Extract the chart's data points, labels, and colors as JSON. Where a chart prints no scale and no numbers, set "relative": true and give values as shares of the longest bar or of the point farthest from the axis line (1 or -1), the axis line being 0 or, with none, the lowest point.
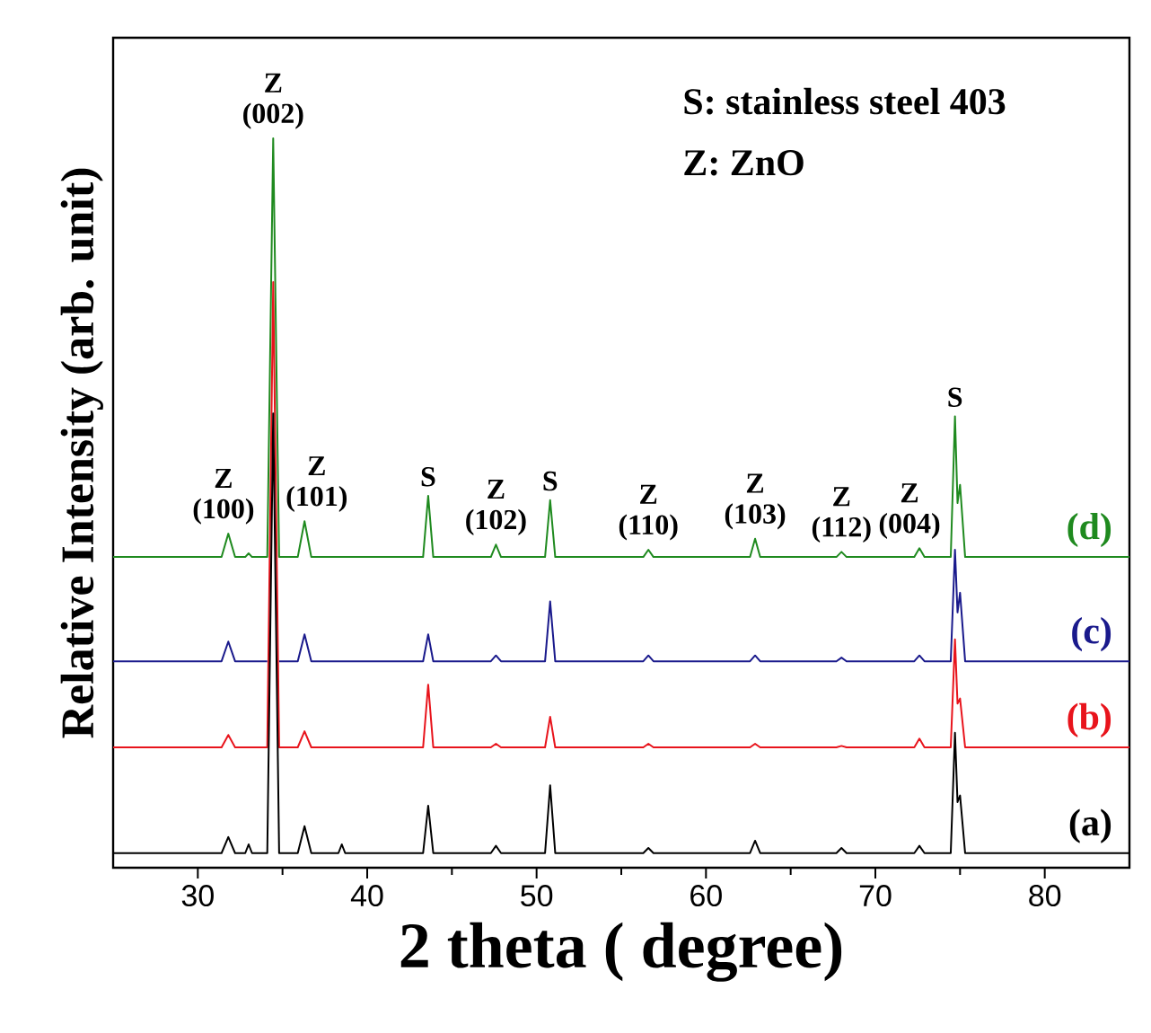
{
  "chart_data": {
    "type": "line",
    "relative": true,
    "xlabel": "2 theta ( degree)",
    "ylabel": "Relative Intensity (arb. unit)",
    "xlim": [
      25,
      85
    ],
    "xticks": [
      30,
      40,
      50,
      60,
      70,
      80
    ],
    "x": [
      25,
      31.4,
      31.8,
      32.2,
      32.8,
      33.0,
      33.2,
      34.1,
      34.45,
      34.8,
      35.9,
      36.3,
      36.7,
      38.3,
      38.5,
      38.7,
      43.3,
      43.6,
      43.9,
      47.3,
      47.6,
      47.9,
      50.5,
      50.8,
      51.1,
      56.3,
      56.6,
      56.9,
      62.6,
      62.9,
      63.2,
      67.7,
      68.0,
      68.3,
      72.3,
      72.6,
      72.9,
      74.45,
      74.7,
      74.85,
      75.0,
      75.3,
      85
    ],
    "series": [
      {
        "name": "(a)",
        "color": "#000000",
        "values": [
          0.02,
          0.02,
          0.042,
          0.02,
          0.02,
          0.032,
          0.02,
          0.02,
          0.623,
          0.02,
          0.02,
          0.057,
          0.02,
          0.02,
          0.032,
          0.02,
          0.02,
          0.085,
          0.02,
          0.02,
          0.03,
          0.02,
          0.02,
          0.113,
          0.02,
          0.02,
          0.027,
          0.02,
          0.02,
          0.037,
          0.02,
          0.02,
          0.027,
          0.02,
          0.02,
          0.03,
          0.02,
          0.02,
          0.185,
          0.09,
          0.099,
          0.02,
          0.02
        ]
      },
      {
        "name": "(b)",
        "color": "#e8141c",
        "values": [
          0.165,
          0.165,
          0.182,
          0.165,
          0.165,
          0.165,
          0.165,
          0.165,
          0.803,
          0.165,
          0.165,
          0.187,
          0.165,
          0.165,
          0.165,
          0.165,
          0.165,
          0.251,
          0.165,
          0.165,
          0.17,
          0.165,
          0.165,
          0.207,
          0.165,
          0.165,
          0.17,
          0.165,
          0.165,
          0.17,
          0.165,
          0.165,
          0.167,
          0.165,
          0.165,
          0.177,
          0.165,
          0.165,
          0.313,
          0.225,
          0.232,
          0.165,
          0.165
        ]
      },
      {
        "name": "(c)",
        "color": "#1a1a8c",
        "values": [
          0.283,
          0.283,
          0.31,
          0.283,
          0.283,
          0.283,
          0.283,
          0.283,
          null,
          0.283,
          0.283,
          0.32,
          0.283,
          0.283,
          0.283,
          0.283,
          0.283,
          0.32,
          0.283,
          0.283,
          0.291,
          0.283,
          0.283,
          0.365,
          0.283,
          0.283,
          0.291,
          0.283,
          0.283,
          0.291,
          0.283,
          0.283,
          0.288,
          0.283,
          0.283,
          0.291,
          0.283,
          0.283,
          0.436,
          0.35,
          0.377,
          0.283,
          0.283
        ]
      },
      {
        "name": "(d)",
        "color": "#1f8a1f",
        "values": [
          0.426,
          0.426,
          0.458,
          0.426,
          0.426,
          0.431,
          0.426,
          0.426,
          1.0,
          0.426,
          0.426,
          0.475,
          0.426,
          0.426,
          0.426,
          0.426,
          0.426,
          0.51,
          0.426,
          0.426,
          0.443,
          0.426,
          0.426,
          0.504,
          0.426,
          0.426,
          0.436,
          0.426,
          0.426,
          0.451,
          0.426,
          0.426,
          0.433,
          0.426,
          0.426,
          0.438,
          0.426,
          0.426,
          0.619,
          0.5,
          0.525,
          0.426,
          0.426
        ]
      }
    ],
    "annotations": [
      {
        "text": "Z (002)",
        "x": 34.45,
        "y": 1.0
      },
      {
        "text": "Z (100)",
        "x": 31.8,
        "y": 0.458
      },
      {
        "text": "Z (101)",
        "x": 36.3,
        "y": 0.475
      },
      {
        "text": "S",
        "x": 43.6,
        "y": 0.51
      },
      {
        "text": "Z (102)",
        "x": 47.6,
        "y": 0.443
      },
      {
        "text": "S",
        "x": 50.8,
        "y": 0.504
      },
      {
        "text": "Z (110)",
        "x": 56.6,
        "y": 0.436
      },
      {
        "text": "Z (103)",
        "x": 62.9,
        "y": 0.451
      },
      {
        "text": "Z (112)",
        "x": 68.0,
        "y": 0.433
      },
      {
        "text": "Z (004)",
        "x": 72.6,
        "y": 0.438
      },
      {
        "text": "S",
        "x": 74.7,
        "y": 0.619
      },
      "S: stainless steel 403",
      "Z: ZnO"
    ]
  }
}
